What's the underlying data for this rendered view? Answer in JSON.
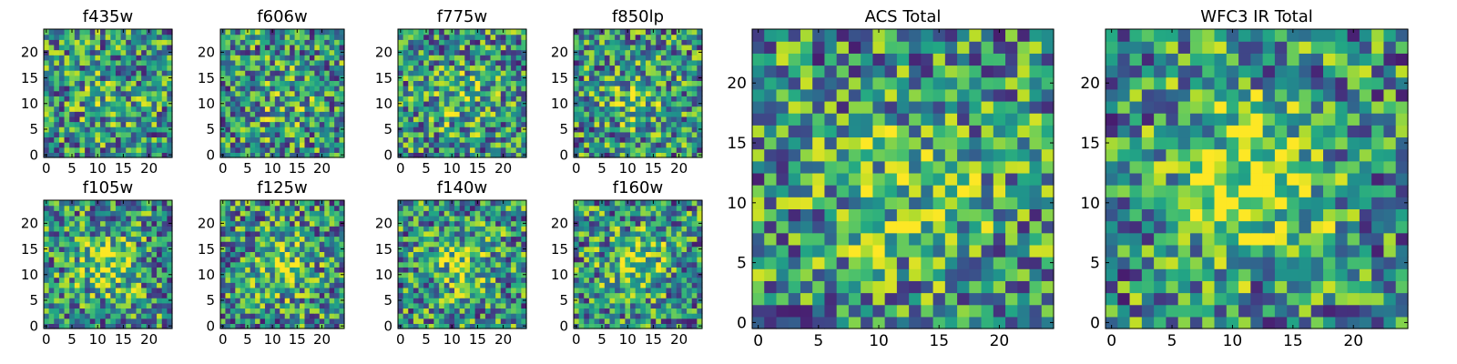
{
  "figure": {
    "title": ""
  },
  "chart_data": [
    {
      "type": "heatmap",
      "title": "f435w",
      "xticks": [
        0,
        5,
        10,
        15,
        20
      ],
      "yticks": [
        0,
        5,
        10,
        15,
        20
      ],
      "grid": false,
      "colormap": "viridis",
      "size": 25,
      "blob": {
        "cx": 12,
        "cy": 11,
        "amp": 0.1,
        "sigma": 5
      },
      "seed": 11
    },
    {
      "type": "heatmap",
      "title": "f606w",
      "xticks": [
        0,
        5,
        10,
        15,
        20
      ],
      "yticks": [
        0,
        5,
        10,
        15,
        20
      ],
      "grid": false,
      "colormap": "viridis",
      "size": 25,
      "blob": {
        "cx": 12,
        "cy": 11,
        "amp": 0.12,
        "sigma": 5
      },
      "seed": 23
    },
    {
      "type": "heatmap",
      "title": "f775w",
      "xticks": [
        0,
        5,
        10,
        15,
        20
      ],
      "yticks": [
        0,
        5,
        10,
        15,
        20
      ],
      "grid": false,
      "colormap": "viridis",
      "size": 25,
      "blob": {
        "cx": 12,
        "cy": 11,
        "amp": 0.15,
        "sigma": 5
      },
      "seed": 37
    },
    {
      "type": "heatmap",
      "title": "f850lp",
      "xticks": [
        0,
        5,
        10,
        15,
        20
      ],
      "yticks": [
        0,
        5,
        10,
        15,
        20
      ],
      "grid": false,
      "colormap": "viridis",
      "size": 25,
      "blob": {
        "cx": 12,
        "cy": 11,
        "amp": 0.2,
        "sigma": 4
      },
      "seed": 41
    },
    {
      "type": "heatmap",
      "title": "f105w",
      "xticks": [
        0,
        5,
        10,
        15,
        20
      ],
      "yticks": [
        0,
        5,
        10,
        15,
        20
      ],
      "grid": false,
      "colormap": "viridis",
      "size": 25,
      "blob": {
        "cx": 12,
        "cy": 12,
        "amp": 0.35,
        "sigma": 4
      },
      "seed": 53
    },
    {
      "type": "heatmap",
      "title": "f125w",
      "xticks": [
        0,
        5,
        10,
        15,
        20
      ],
      "yticks": [
        0,
        5,
        10,
        15,
        20
      ],
      "grid": false,
      "colormap": "viridis",
      "size": 25,
      "blob": {
        "cx": 12,
        "cy": 12,
        "amp": 0.3,
        "sigma": 4
      },
      "seed": 67
    },
    {
      "type": "heatmap",
      "title": "f140w",
      "xticks": [
        0,
        5,
        10,
        15,
        20
      ],
      "yticks": [
        0,
        5,
        10,
        15,
        20
      ],
      "grid": false,
      "colormap": "viridis",
      "size": 25,
      "blob": {
        "cx": 12,
        "cy": 12,
        "amp": 0.3,
        "sigma": 4
      },
      "seed": 71
    },
    {
      "type": "heatmap",
      "title": "f160w",
      "xticks": [
        0,
        5,
        10,
        15,
        20
      ],
      "yticks": [
        0,
        5,
        10,
        15,
        20
      ],
      "grid": false,
      "colormap": "viridis",
      "size": 25,
      "blob": {
        "cx": 12,
        "cy": 12,
        "amp": 0.35,
        "sigma": 4
      },
      "seed": 83
    },
    {
      "type": "heatmap",
      "title": "ACS Total",
      "xticks": [
        0,
        5,
        10,
        15,
        20
      ],
      "yticks": [
        0,
        5,
        10,
        15,
        20
      ],
      "grid": false,
      "colormap": "viridis",
      "size": 25,
      "blob": {
        "cx": 12,
        "cy": 11,
        "amp": 0.2,
        "sigma": 5
      },
      "seed": 97
    },
    {
      "type": "heatmap",
      "title": "WFC3 IR Total",
      "xticks": [
        0,
        5,
        10,
        15,
        20
      ],
      "yticks": [
        0,
        5,
        10,
        15,
        20
      ],
      "grid": false,
      "colormap": "viridis",
      "size": 25,
      "blob": {
        "cx": 12,
        "cy": 12,
        "amp": 0.5,
        "sigma": 4
      },
      "seed": 101
    }
  ]
}
